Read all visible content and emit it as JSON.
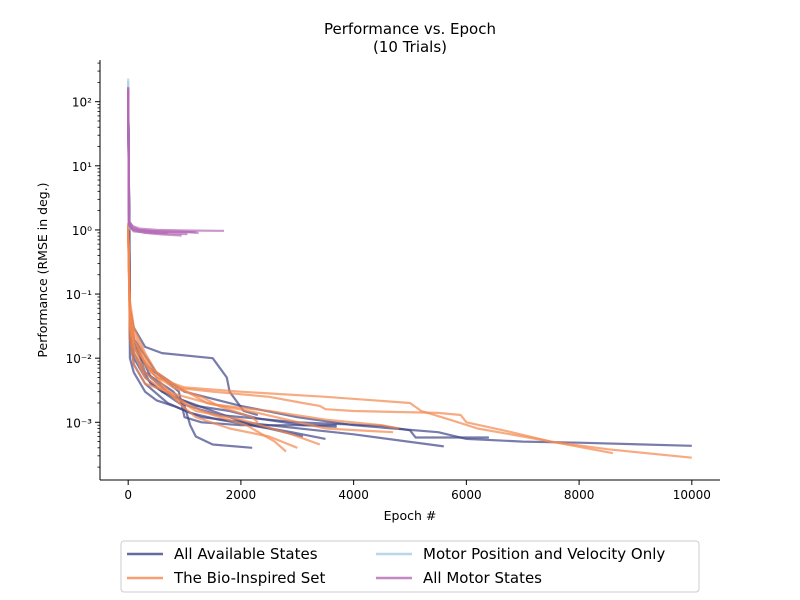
{
  "chart_data": {
    "type": "line",
    "title": "Performance vs. Epoch",
    "subtitle": "(10 Trials)",
    "xlabel": "Epoch #",
    "ylabel": "Performance (RMSE in deg.)",
    "xlim": [
      -500,
      10500
    ],
    "ylim_log10": [
      -3.9,
      2.65
    ],
    "y_scale": "log",
    "grid": false,
    "legend_position": "bottom-center",
    "x_ticks": [
      0,
      2000,
      4000,
      6000,
      8000,
      10000
    ],
    "x_tick_labels": [
      "0",
      "2000",
      "4000",
      "6000",
      "8000",
      "10000"
    ],
    "y_ticks": [
      -3,
      -2,
      -1,
      0,
      1,
      2
    ],
    "y_tick_labels": [
      "10⁻³",
      "10⁻²",
      "10⁻¹",
      "10⁰",
      "10¹",
      "10²"
    ],
    "series": [
      {
        "name": "All Available States",
        "color": "#3f4587",
        "runs": [
          [
            [
              0,
              150
            ],
            [
              30,
              0.06
            ],
            [
              100,
              0.03
            ],
            [
              300,
              0.015
            ],
            [
              600,
              0.012
            ],
            [
              1500,
              0.01
            ],
            [
              1750,
              0.005
            ],
            [
              1800,
              0.003
            ],
            [
              2050,
              0.0015
            ],
            [
              2300,
              0.0013
            ]
          ],
          [
            [
              0,
              120
            ],
            [
              30,
              0.03
            ],
            [
              100,
              0.015
            ],
            [
              300,
              0.008
            ],
            [
              600,
              0.005
            ],
            [
              900,
              0.003
            ],
            [
              1000,
              0.0012
            ],
            [
              1300,
              0.001
            ],
            [
              2000,
              0.0009
            ],
            [
              3700,
              0.0009
            ]
          ],
          [
            [
              0,
              130
            ],
            [
              30,
              0.05
            ],
            [
              100,
              0.02
            ],
            [
              300,
              0.006
            ],
            [
              800,
              0.003
            ],
            [
              1000,
              0.0018
            ],
            [
              1100,
              0.0009
            ],
            [
              1200,
              0.0006
            ],
            [
              1500,
              0.00045
            ],
            [
              2200,
              0.0004
            ]
          ],
          [
            [
              0,
              140
            ],
            [
              30,
              0.025
            ],
            [
              100,
              0.01
            ],
            [
              300,
              0.005
            ],
            [
              600,
              0.003
            ],
            [
              1200,
              0.0018
            ],
            [
              1800,
              0.0015
            ],
            [
              2300,
              0.00115
            ],
            [
              3100,
              0.0009
            ],
            [
              3700,
              0.00085
            ]
          ],
          [
            [
              0,
              110
            ],
            [
              30,
              0.02
            ],
            [
              100,
              0.008
            ],
            [
              300,
              0.004
            ],
            [
              700,
              0.002
            ],
            [
              1100,
              0.0014
            ],
            [
              1600,
              0.0011
            ],
            [
              2500,
              0.0008
            ],
            [
              3100,
              0.0006
            ]
          ],
          [
            [
              0,
              125
            ],
            [
              30,
              0.04
            ],
            [
              100,
              0.02
            ],
            [
              400,
              0.005
            ],
            [
              800,
              0.0025
            ],
            [
              1500,
              0.0015
            ],
            [
              2200,
              0.0009
            ],
            [
              2900,
              0.0007
            ],
            [
              3500,
              0.00055
            ]
          ],
          [
            [
              0,
              115
            ],
            [
              30,
              0.01
            ],
            [
              100,
              0.006
            ],
            [
              300,
              0.003
            ],
            [
              500,
              0.0022
            ],
            [
              800,
              0.0018
            ],
            [
              1300,
              0.0012
            ],
            [
              2500,
              0.0009
            ],
            [
              4000,
              0.00065
            ],
            [
              5600,
              0.00042
            ]
          ],
          [
            [
              0,
              135
            ],
            [
              30,
              0.03
            ],
            [
              100,
              0.012
            ],
            [
              400,
              0.004
            ],
            [
              900,
              0.002
            ],
            [
              1600,
              0.0013
            ],
            [
              3000,
              0.001
            ],
            [
              4500,
              0.00088
            ],
            [
              5000,
              0.00075
            ],
            [
              5100,
              0.00058
            ],
            [
              6400,
              0.00058
            ]
          ],
          [
            [
              0,
              145
            ],
            [
              30,
              0.05
            ],
            [
              100,
              0.02
            ],
            [
              500,
              0.006
            ],
            [
              1000,
              0.003
            ],
            [
              2000,
              0.0018
            ],
            [
              3000,
              0.0012
            ],
            [
              4000,
              0.0009
            ],
            [
              5500,
              0.0007
            ],
            [
              6000,
              0.00055
            ],
            [
              7000,
              0.0005
            ],
            [
              8000,
              0.00048
            ],
            [
              10000,
              0.00043
            ]
          ]
        ]
      },
      {
        "name": "The Bio-Inspired Set",
        "color": "#f4884d",
        "runs": [
          [
            [
              0,
              1.2
            ],
            [
              30,
              0.08
            ],
            [
              100,
              0.03
            ],
            [
              300,
              0.012
            ],
            [
              500,
              0.006
            ],
            [
              800,
              0.0035
            ],
            [
              1300,
              0.0025
            ],
            [
              1600,
              0.0018
            ],
            [
              2200,
              0.0012
            ],
            [
              2300,
              0.001
            ]
          ],
          [
            [
              0,
              1.0
            ],
            [
              30,
              0.05
            ],
            [
              100,
              0.02
            ],
            [
              300,
              0.008
            ],
            [
              600,
              0.004
            ],
            [
              900,
              0.002
            ],
            [
              1200,
              0.0012
            ],
            [
              1800,
              0.0008
            ],
            [
              2500,
              0.0006
            ],
            [
              3000,
              0.0004
            ]
          ],
          [
            [
              0,
              0.9
            ],
            [
              30,
              0.04
            ],
            [
              100,
              0.015
            ],
            [
              300,
              0.006
            ],
            [
              700,
              0.003
            ],
            [
              1100,
              0.0018
            ],
            [
              1500,
              0.0013
            ],
            [
              2100,
              0.0009
            ],
            [
              2600,
              0.0005
            ],
            [
              2800,
              0.00035
            ]
          ],
          [
            [
              0,
              1.1
            ],
            [
              30,
              0.03
            ],
            [
              100,
              0.012
            ],
            [
              300,
              0.005
            ],
            [
              800,
              0.0025
            ],
            [
              1200,
              0.0015
            ],
            [
              2000,
              0.0011
            ],
            [
              2900,
              0.00065
            ],
            [
              3400,
              0.00045
            ]
          ],
          [
            [
              0,
              0.8
            ],
            [
              30,
              0.06
            ],
            [
              100,
              0.025
            ],
            [
              400,
              0.007
            ],
            [
              900,
              0.0035
            ],
            [
              1400,
              0.002
            ],
            [
              2300,
              0.0014
            ],
            [
              3500,
              0.0008
            ],
            [
              4700,
              0.0007
            ]
          ],
          [
            [
              0,
              1.3
            ],
            [
              30,
              0.02
            ],
            [
              100,
              0.008
            ],
            [
              300,
              0.004
            ],
            [
              800,
              0.0028
            ],
            [
              1500,
              0.0019
            ],
            [
              2500,
              0.0015
            ],
            [
              3500,
              0.0011
            ],
            [
              4500,
              0.0009
            ],
            [
              4800,
              0.0008
            ]
          ],
          [
            [
              0,
              1.0
            ],
            [
              30,
              0.05
            ],
            [
              100,
              0.02
            ],
            [
              400,
              0.006
            ],
            [
              800,
              0.0035
            ],
            [
              1500,
              0.003
            ],
            [
              2500,
              0.0025
            ],
            [
              3100,
              0.002
            ],
            [
              3400,
              0.0018
            ],
            [
              3500,
              0.0016
            ],
            [
              4000,
              0.0015
            ],
            [
              5500,
              0.0014
            ],
            [
              5900,
              0.0013
            ],
            [
              6000,
              0.001
            ],
            [
              6800,
              0.0007
            ],
            [
              7500,
              0.0005
            ],
            [
              8600,
              0.00033
            ]
          ],
          [
            [
              0,
              1.2
            ],
            [
              30,
              0.04
            ],
            [
              100,
              0.015
            ],
            [
              500,
              0.005
            ],
            [
              1000,
              0.0035
            ],
            [
              2000,
              0.003
            ],
            [
              3500,
              0.0025
            ],
            [
              5000,
              0.002
            ],
            [
              5200,
              0.0015
            ],
            [
              5700,
              0.0011
            ],
            [
              6200,
              0.0008
            ],
            [
              7000,
              0.0006
            ],
            [
              7500,
              0.0005
            ],
            [
              8500,
              0.00038
            ],
            [
              10000,
              0.00028
            ]
          ]
        ]
      },
      {
        "name": "Motor Position and Velocity Only",
        "color": "#a8cde2",
        "runs": [
          [
            [
              0,
              230
            ],
            [
              15,
              1.2
            ],
            [
              50,
              1.1
            ]
          ],
          [
            [
              0,
              210
            ],
            [
              15,
              1.1
            ],
            [
              50,
              1.0
            ]
          ]
        ]
      },
      {
        "name": "All Motor States",
        "color": "#b56ab5",
        "runs": [
          [
            [
              0,
              170
            ],
            [
              15,
              1.4
            ],
            [
              80,
              1.1
            ],
            [
              200,
              1.0
            ],
            [
              500,
              0.95
            ],
            [
              900,
              0.93
            ],
            [
              1200,
              0.92
            ]
          ],
          [
            [
              0,
              160
            ],
            [
              15,
              1.3
            ],
            [
              80,
              1.05
            ],
            [
              200,
              0.98
            ],
            [
              600,
              0.95
            ],
            [
              1000,
              0.93
            ],
            [
              1250,
              0.9
            ]
          ],
          [
            [
              0,
              150
            ],
            [
              15,
              1.2
            ],
            [
              80,
              1.0
            ],
            [
              300,
              0.9
            ],
            [
              600,
              0.85
            ],
            [
              950,
              0.82
            ]
          ],
          [
            [
              0,
              155
            ],
            [
              15,
              1.35
            ],
            [
              80,
              1.15
            ],
            [
              200,
              1.05
            ],
            [
              500,
              1.0
            ],
            [
              1000,
              0.98
            ],
            [
              1600,
              0.97
            ],
            [
              1700,
              0.97
            ]
          ],
          [
            [
              0,
              165
            ],
            [
              15,
              1.25
            ],
            [
              100,
              1.0
            ],
            [
              400,
              0.92
            ],
            [
              800,
              0.88
            ],
            [
              1050,
              0.86
            ]
          ],
          [
            [
              0,
              145
            ],
            [
              15,
              1.15
            ],
            [
              100,
              0.95
            ],
            [
              400,
              0.9
            ],
            [
              700,
              0.88
            ]
          ]
        ]
      }
    ]
  }
}
